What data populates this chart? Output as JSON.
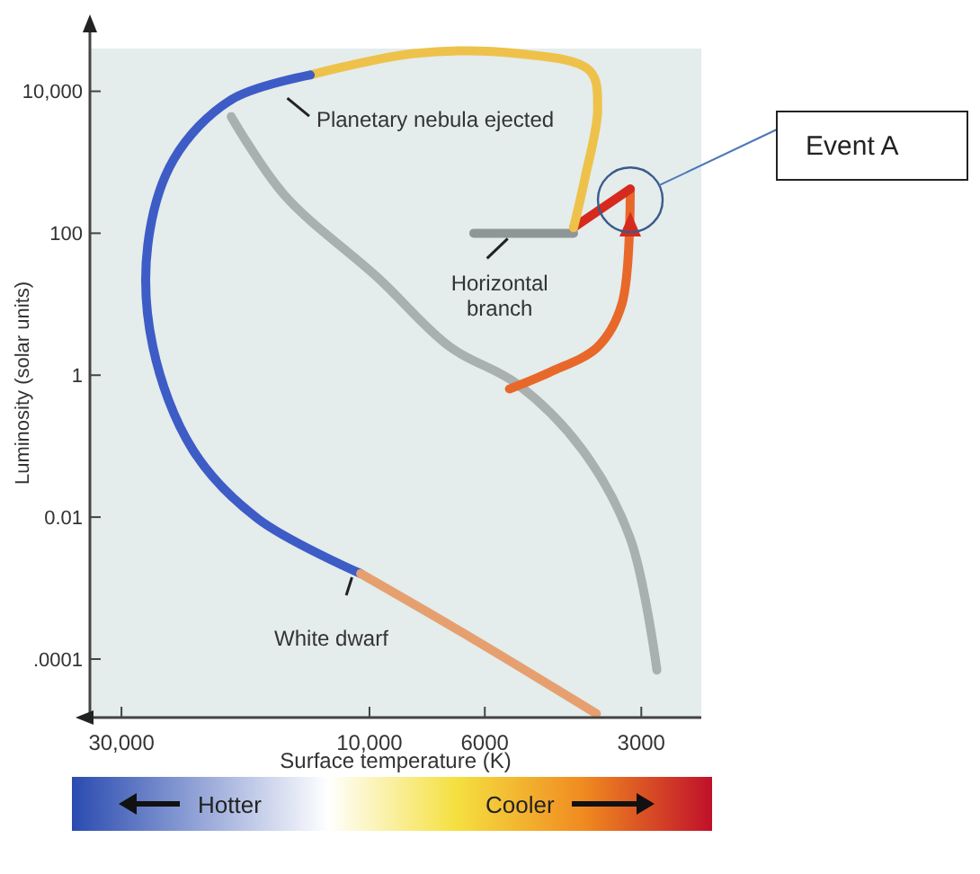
{
  "chart_data": {
    "type": "line",
    "xlabel": "Surface temperature (K)",
    "ylabel": "Luminosity (solar units)",
    "log": "xy",
    "grid": false,
    "marker": "none",
    "line_style": "solid",
    "xlim": [
      34500,
      2300
    ],
    "xticks": [
      {
        "value": 30000,
        "label": "30,000"
      },
      {
        "value": 10000,
        "label": "10,000"
      },
      6000,
      3000
    ],
    "ylim": [
      1.5e-05,
      40000
    ],
    "yticks": [
      {
        "value": 0.0001,
        "label": ".0001"
      },
      0.01,
      1,
      100,
      {
        "value": 10000,
        "label": "10,000"
      }
    ],
    "series": [
      {
        "color": "#a9b0b0",
        "x": [
          18450,
          14600,
          9600,
          7000,
          5200,
          3900,
          3150,
          2800
        ],
        "values": [
          4400,
          350,
          23,
          2.5,
          0.75,
          0.09,
          0.005,
          7e-05
        ]
      },
      {
        "color": "#e8682a",
        "x": [
          5380,
          4500,
          3640,
          3270,
          3150
        ],
        "values": [
          0.64,
          1.1,
          2.5,
          10,
          420
        ]
      },
      {
        "color": "#d62a1e",
        "x": [
          3150,
          4050
        ],
        "values": [
          420,
          120
        ]
      },
      {
        "color": "#8f9696",
        "x": [
          6300,
          4050
        ],
        "values": [
          100,
          100
        ]
      },
      {
        "color": "#eec24a",
        "x": [
          4050,
          3850,
          3640,
          3770,
          5200,
          8200,
          13000
        ],
        "values": [
          120,
          600,
          5700,
          19500,
          34000,
          34000,
          17000
        ]
      },
      {
        "color": "#3e5cc6",
        "x": [
          13000,
          18450,
          23800,
          26700,
          26100,
          21900,
          16400,
          10400
        ],
        "values": [
          17000,
          7600,
          1100,
          68,
          2.5,
          0.09,
          0.0095,
          0.0016
        ]
      },
      {
        "color": "#e6a070",
        "x": [
          10400,
          6300,
          3660
        ],
        "values": [
          0.0016,
          0.00019,
          1.7e-05
        ]
      }
    ],
    "annotations": [
      {
        "text": "Planetary nebula ejected",
        "x": 14600,
        "y": 9000
      },
      {
        "text": "Horizontal branch",
        "x": 5400,
        "y": 100
      },
      {
        "text": "White dwarf",
        "x": 10400,
        "y": 0.0016
      },
      "Event A",
      "Hotter",
      "Cooler"
    ]
  }
}
